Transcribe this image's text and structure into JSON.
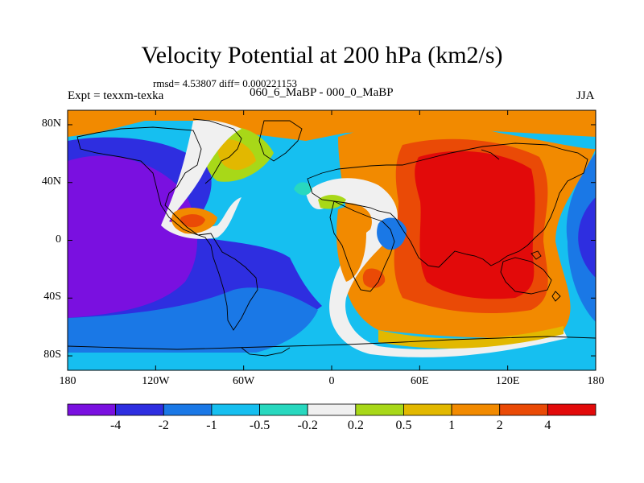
{
  "title": "Velocity Potential at 200 hPa (km2/s)",
  "stats": "rmsd= 4.53807 diff= 0.000221153",
  "experiment": "Expt = texxm-texka",
  "subtitle": "060_6_MaBP - 000_0_MaBP",
  "season": "JJA",
  "axes": {
    "y_ticks": [
      {
        "label": "80N",
        "lat": 80
      },
      {
        "label": "40N",
        "lat": 40
      },
      {
        "label": "0",
        "lat": 0
      },
      {
        "label": "40S",
        "lat": -40
      },
      {
        "label": "80S",
        "lat": -80
      }
    ],
    "x_ticks": [
      {
        "label": "180",
        "lon": -180
      },
      {
        "label": "120W",
        "lon": -120
      },
      {
        "label": "60W",
        "lon": -60
      },
      {
        "label": "0",
        "lon": 0
      },
      {
        "label": "60E",
        "lon": 60
      },
      {
        "label": "120E",
        "lon": 120
      },
      {
        "label": "180",
        "lon": 180
      }
    ]
  },
  "colorbar": {
    "colors": [
      "#7a10e0",
      "#2e2ee0",
      "#1a78e6",
      "#16bff0",
      "#28d8bf",
      "#f0f0f0",
      "#a8d818",
      "#e2b800",
      "#f28a00",
      "#ea4a06",
      "#e20a0a"
    ],
    "labels": [
      "-4",
      "-2",
      "-1",
      "-0.5",
      "-0.2",
      "0.2",
      "0.5",
      "1",
      "2",
      "4"
    ]
  }
}
